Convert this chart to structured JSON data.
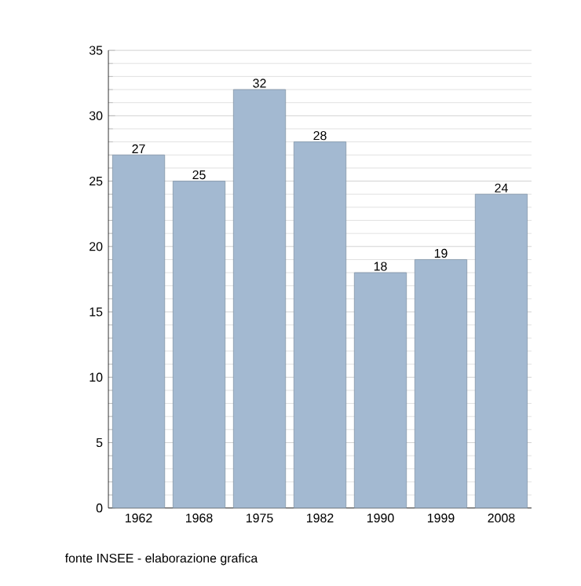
{
  "chart_data": {
    "type": "bar",
    "categories": [
      "1962",
      "1968",
      "1975",
      "1982",
      "1990",
      "1999",
      "2008"
    ],
    "values": [
      27,
      25,
      32,
      28,
      18,
      19,
      24
    ],
    "color": "#a3b9d1",
    "ylim": [
      0,
      35
    ],
    "yticks": [
      0,
      5,
      10,
      15,
      20,
      25,
      30,
      35
    ],
    "grid": "y",
    "data_labels": true,
    "annotations": [
      "fonte INSEE - elaborazione grafica"
    ]
  }
}
